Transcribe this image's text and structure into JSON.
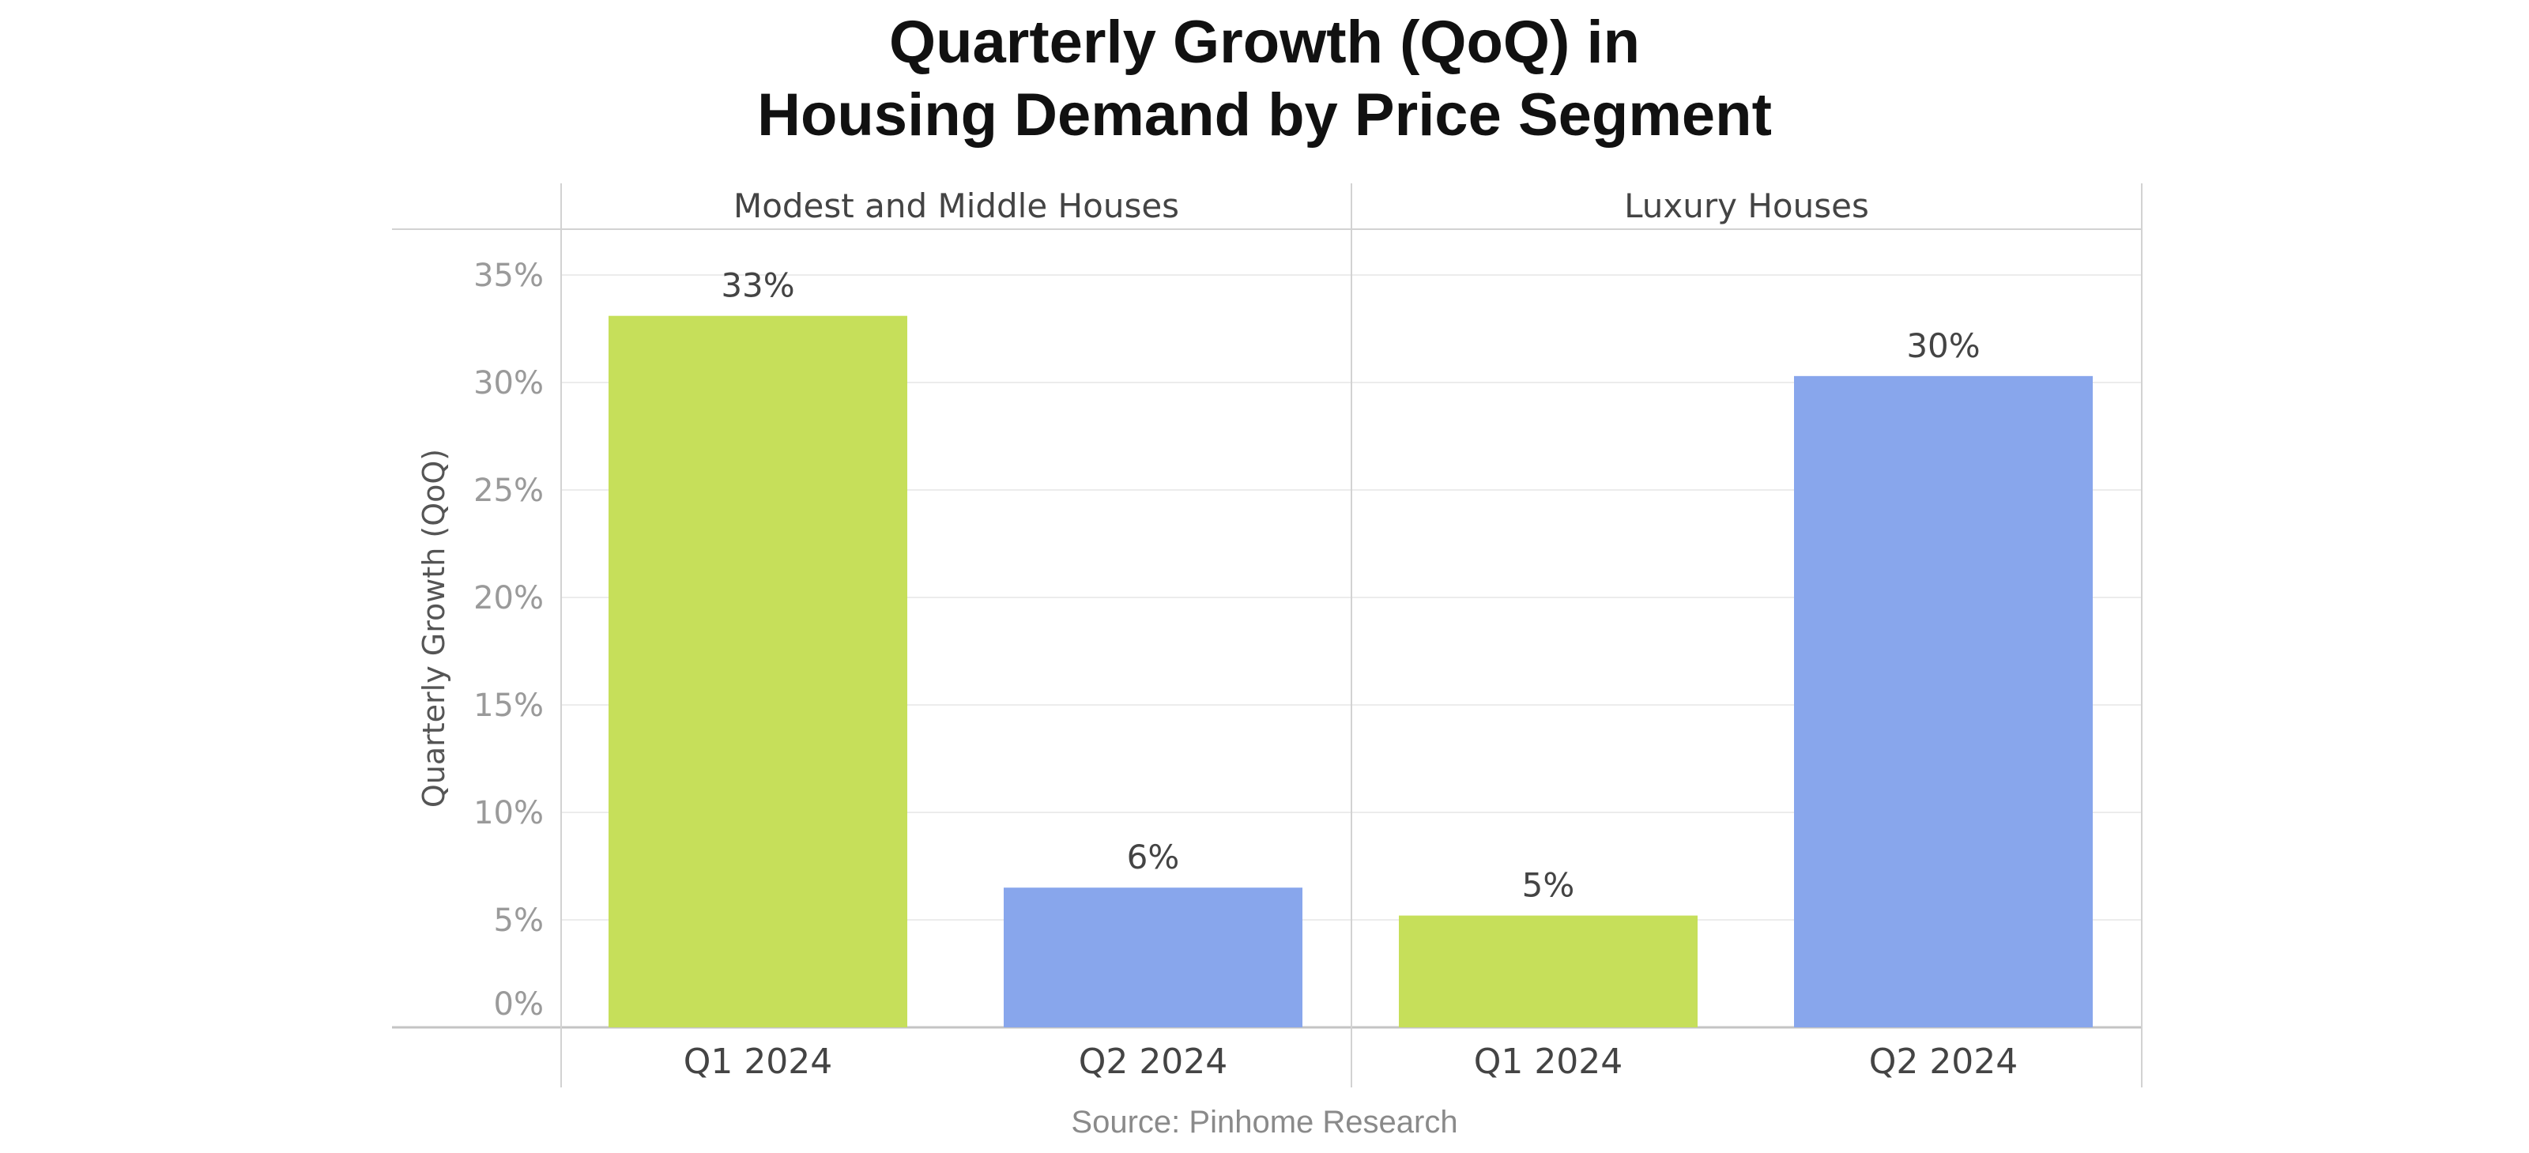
{
  "title_line1": "Quarterly Growth (QoQ) in",
  "title_line2": "Housing Demand by Price Segment",
  "source": "Source: Pinhome Research",
  "chart_data": {
    "type": "bar",
    "ylabel": "Quarterly Growth (QoQ)",
    "ylim": [
      0,
      35
    ],
    "yticks": [
      "0%",
      "5%",
      "10%",
      "15%",
      "20%",
      "25%",
      "30%",
      "35%"
    ],
    "ytick_values": [
      0,
      5,
      10,
      15,
      20,
      25,
      30,
      35
    ],
    "grid": true,
    "panels": [
      {
        "name": "Modest and Middle Houses",
        "categories": [
          "Q1 2024",
          "Q2 2024"
        ],
        "values": [
          33.1,
          6.5
        ],
        "labels": [
          "33%",
          "6%"
        ]
      },
      {
        "name": "Luxury Houses",
        "categories": [
          "Q1 2024",
          "Q2 2024"
        ],
        "values": [
          5.2,
          30.3
        ],
        "labels": [
          "5%",
          "30%"
        ]
      }
    ],
    "colors": {
      "Q1 2024": "#c6df5a",
      "Q2 2024": "#88a6ec"
    }
  }
}
